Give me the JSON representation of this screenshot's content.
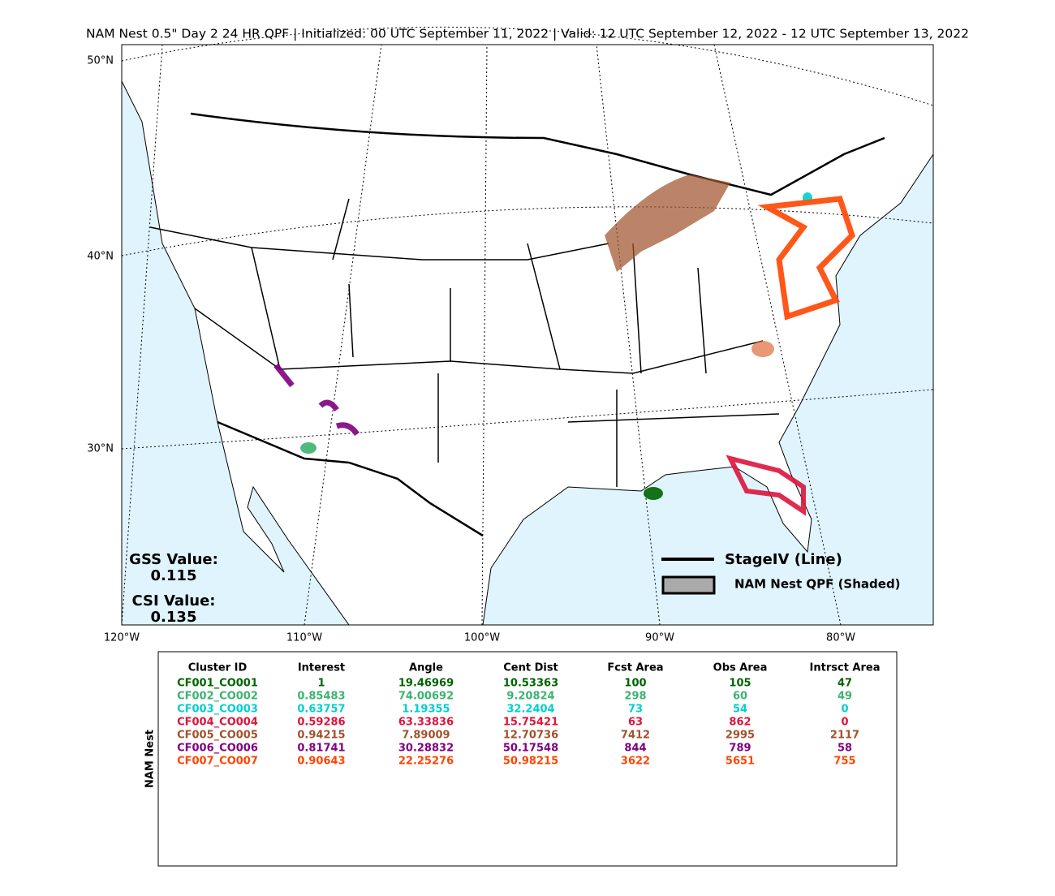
{
  "title": "NAM Nest 0.5\" Day 2 24 HR QPF | Initialized: 00 UTC September 11, 2022 | Valid: 12 UTC September 12, 2022 - 12 UTC September 13, 2022",
  "map": {
    "lat_labels": [
      "50°N",
      "40°N",
      "30°N"
    ],
    "lon_labels": [
      "120°W",
      "110°W",
      "100°W",
      "90°W",
      "80°W"
    ],
    "gss_label": "GSS Value:",
    "gss_value": "0.115",
    "csi_label": "CSI Value:",
    "csi_value": "0.135",
    "legend": [
      "StageIV (Line)",
      "NAM Nest QPF (Shaded)"
    ]
  },
  "table": {
    "side_label": "NAM Nest",
    "headers": [
      "Cluster ID",
      "Interest",
      "Angle",
      "Cent Dist",
      "Fcst Area",
      "Obs Area",
      "Intrsct Area"
    ],
    "rows": [
      {
        "color": "#006400",
        "cells": [
          "CF001_CO001",
          "1",
          "19.46969",
          "10.53363",
          "100",
          "105",
          "47"
        ]
      },
      {
        "color": "#3cb371",
        "cells": [
          "CF002_CO002",
          "0.85483",
          "74.00692",
          "9.20824",
          "298",
          "60",
          "49"
        ]
      },
      {
        "color": "#00ced1",
        "cells": [
          "CF003_CO003",
          "0.63757",
          "1.19355",
          "32.2404",
          "73",
          "54",
          "0"
        ]
      },
      {
        "color": "#dc143c",
        "cells": [
          "CF004_CO004",
          "0.59286",
          "63.33836",
          "15.75421",
          "63",
          "862",
          "0"
        ]
      },
      {
        "color": "#a0522d",
        "cells": [
          "CF005_CO005",
          "0.94215",
          "7.89009",
          "12.70736",
          "7412",
          "2995",
          "2117"
        ]
      },
      {
        "color": "#800080",
        "cells": [
          "CF006_CO006",
          "0.81741",
          "30.28832",
          "50.17548",
          "844",
          "789",
          "58"
        ]
      },
      {
        "color": "#ff4500",
        "cells": [
          "CF007_CO007",
          "0.90643",
          "22.25276",
          "50.98215",
          "3622",
          "5651",
          "755"
        ]
      }
    ]
  }
}
